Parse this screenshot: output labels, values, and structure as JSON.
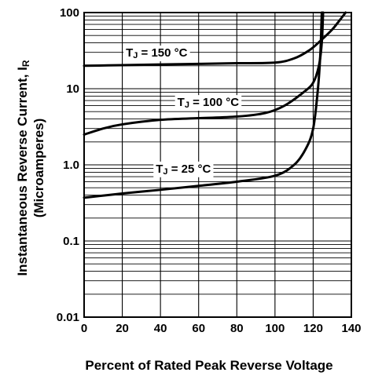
{
  "chart_data": {
    "type": "line",
    "title": "",
    "xlabel": "Percent of Rated Peak Reverse Voltage",
    "ylabel": "Instantaneous Reverse Current, I",
    "ylabel_sub": "R",
    "ylabel_line2": "(Microamperes)",
    "x_range": [
      0,
      140
    ],
    "y_range": [
      0.01,
      100
    ],
    "y_scale": "log",
    "grid": true,
    "x_ticks": [
      "0",
      "20",
      "40",
      "60",
      "80",
      "100",
      "120",
      "140"
    ],
    "x_tick_values": [
      0,
      20,
      40,
      60,
      80,
      100,
      120,
      140
    ],
    "y_ticks": [
      "0.01",
      "0.1",
      "1.0",
      "10",
      "100"
    ],
    "y_tick_values": [
      0.01,
      0.1,
      1,
      10,
      100
    ],
    "series": [
      {
        "label_prefix": "T",
        "label_sub": "J",
        "label_value": " = 150 °C",
        "label_at": {
          "x": 38,
          "y": 29
        },
        "points": [
          [
            0,
            20
          ],
          [
            20,
            20.4
          ],
          [
            40,
            20.8
          ],
          [
            60,
            21.2
          ],
          [
            80,
            21.6
          ],
          [
            100,
            22
          ],
          [
            110,
            25
          ],
          [
            118,
            32
          ],
          [
            124,
            43
          ],
          [
            130,
            60
          ],
          [
            134,
            80
          ],
          [
            137,
            100
          ]
        ]
      },
      {
        "label_prefix": "T",
        "label_sub": "J",
        "label_value": " = 100 °C",
        "label_at": {
          "x": 65,
          "y": 6.5
        },
        "points": [
          [
            0,
            2.5
          ],
          [
            10,
            3.0
          ],
          [
            20,
            3.4
          ],
          [
            40,
            3.9
          ],
          [
            60,
            4.1
          ],
          [
            80,
            4.3
          ],
          [
            95,
            4.8
          ],
          [
            105,
            6
          ],
          [
            115,
            9
          ],
          [
            120,
            12
          ],
          [
            123,
            20
          ],
          [
            124.5,
            40
          ],
          [
            125.2,
            100
          ]
        ]
      },
      {
        "label_prefix": "T",
        "label_sub": "J",
        "label_value": " = 25 °C",
        "label_at": {
          "x": 52,
          "y": 0.87
        },
        "points": [
          [
            0,
            0.37
          ],
          [
            20,
            0.42
          ],
          [
            40,
            0.47
          ],
          [
            60,
            0.53
          ],
          [
            80,
            0.6
          ],
          [
            100,
            0.72
          ],
          [
            110,
            1.0
          ],
          [
            116,
            1.6
          ],
          [
            120,
            3
          ],
          [
            122.5,
            10
          ],
          [
            123.8,
            30
          ],
          [
            124.5,
            100
          ]
        ]
      }
    ]
  }
}
